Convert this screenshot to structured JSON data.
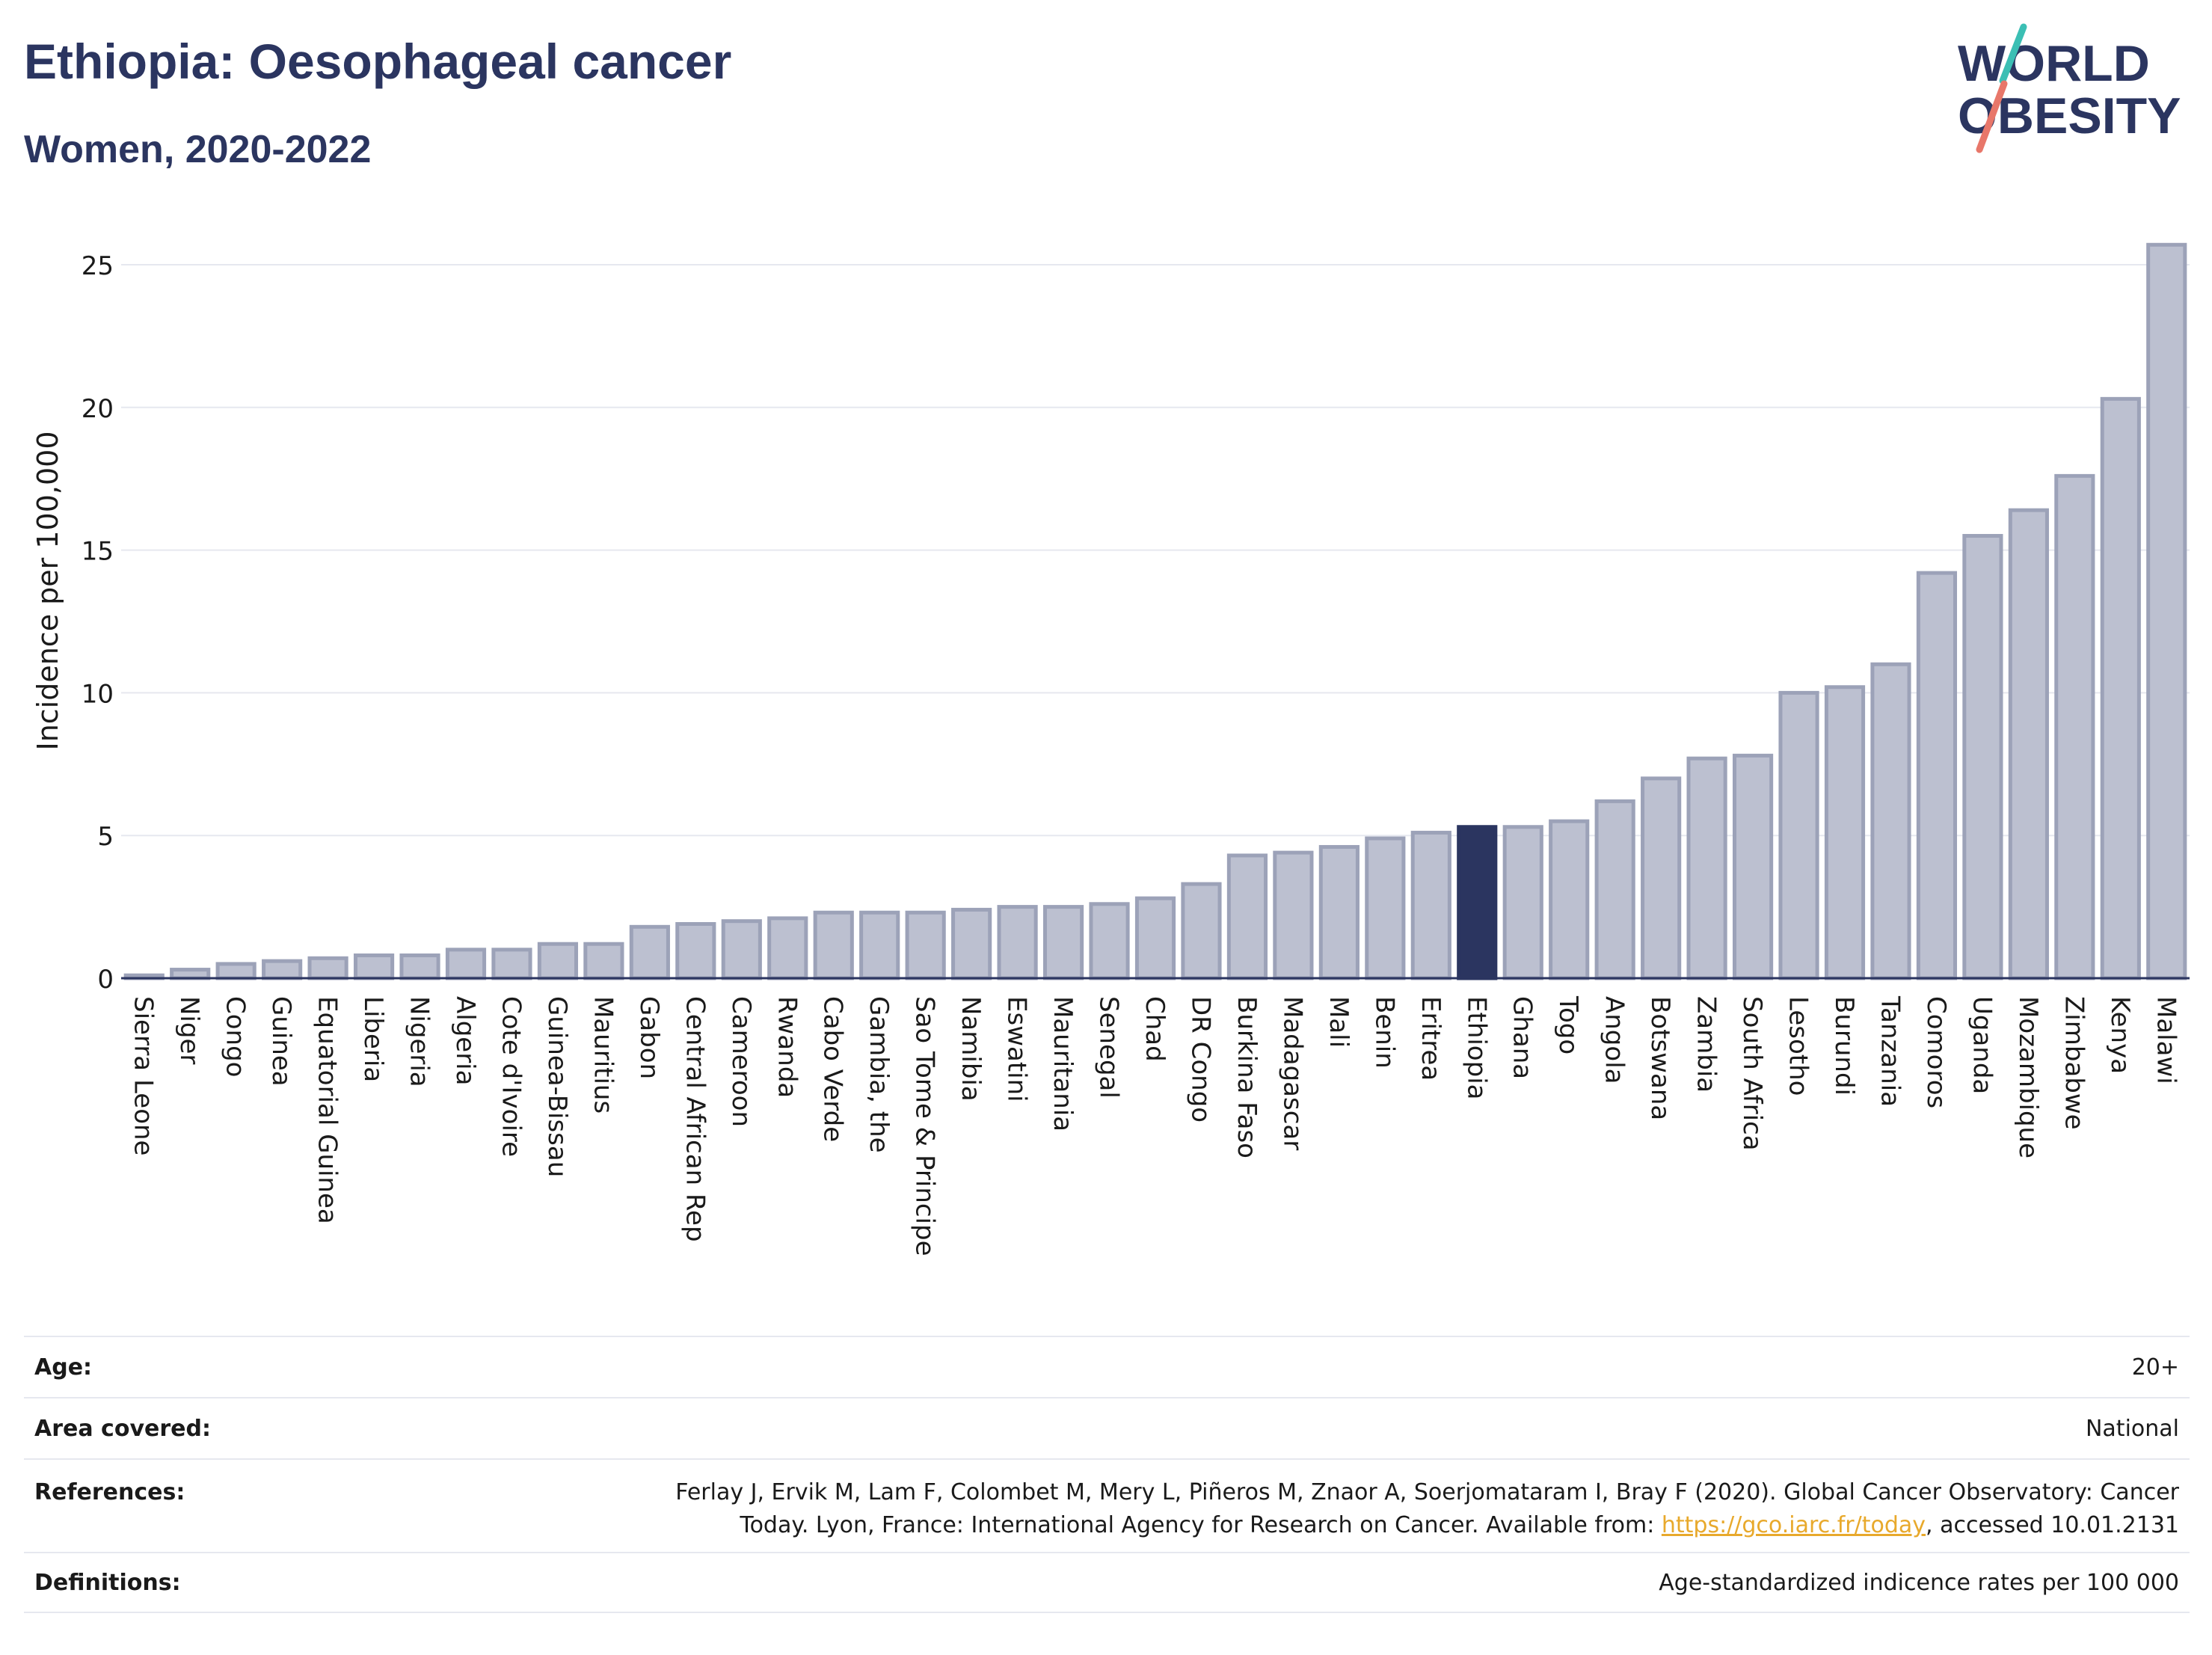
{
  "header": {
    "title": "Ethiopia: Oesophageal cancer",
    "subtitle": "Women, 2020-2022"
  },
  "logo": {
    "line1": "WORLD",
    "line2": "OBESITY"
  },
  "colors": {
    "highlight": "#2b3560",
    "bar_fill": "#bcc0d0",
    "bar_stroke": "#9ca2b8",
    "grid": "#e6e8ef",
    "logo_teal": "#3bbfb4",
    "logo_coral": "#e8776a",
    "link": "#e8a92c"
  },
  "chart_data": {
    "type": "bar",
    "title": "",
    "xlabel": "",
    "ylabel": "Incidence per 100,000",
    "ylim": [
      0,
      26
    ],
    "yticks": [
      0,
      5,
      10,
      15,
      20,
      25
    ],
    "grid": true,
    "highlight": "Ethiopia",
    "categories": [
      "Sierra Leone",
      "Niger",
      "Congo",
      "Guinea",
      "Equatorial Guinea",
      "Liberia",
      "Nigeria",
      "Algeria",
      "Cote d'Ivoire",
      "Guinea-Bissau",
      "Mauritius",
      "Gabon",
      "Central African Rep",
      "Cameroon",
      "Rwanda",
      "Cabo Verde",
      "Gambia, the",
      "Sao Tome & Principe",
      "Namibia",
      "Eswatini",
      "Mauritania",
      "Senegal",
      "Chad",
      "DR Congo",
      "Burkina Faso",
      "Madagascar",
      "Mali",
      "Benin",
      "Eritrea",
      "Ethiopia",
      "Ghana",
      "Togo",
      "Angola",
      "Botswana",
      "Zambia",
      "South Africa",
      "Lesotho",
      "Burundi",
      "Tanzania",
      "Comoros",
      "Uganda",
      "Mozambique",
      "Zimbabwe",
      "Kenya",
      "Malawi"
    ],
    "values": [
      0.1,
      0.3,
      0.5,
      0.6,
      0.7,
      0.8,
      0.8,
      1.0,
      1.0,
      1.2,
      1.2,
      1.8,
      1.9,
      2.0,
      2.1,
      2.3,
      2.3,
      2.3,
      2.4,
      2.5,
      2.5,
      2.6,
      2.8,
      3.3,
      4.3,
      4.4,
      4.6,
      4.9,
      5.1,
      5.3,
      5.3,
      5.5,
      6.2,
      7.0,
      7.7,
      7.8,
      10.0,
      10.2,
      11.0,
      14.2,
      15.5,
      16.4,
      17.6,
      20.3,
      25.7
    ]
  },
  "info": {
    "age_label": "Age:",
    "age_value": "20+",
    "area_label": "Area covered:",
    "area_value": "National",
    "ref_label": "References:",
    "ref_line1": "Ferlay J, Ervik M, Lam F, Colombet M, Mery L, Piñeros M, Znaor A, Soerjomataram I, Bray F (2020). Global Cancer Observatory: Cancer",
    "ref_line2_prefix": "Today. Lyon, France: International Agency for Research on Cancer. Available from: ",
    "ref_link": "https://gco.iarc.fr/today",
    "ref_line2_suffix": ", accessed 10.01.2131",
    "def_label": "Definitions:",
    "def_value": "Age-standardized indicence rates per 100 000"
  }
}
